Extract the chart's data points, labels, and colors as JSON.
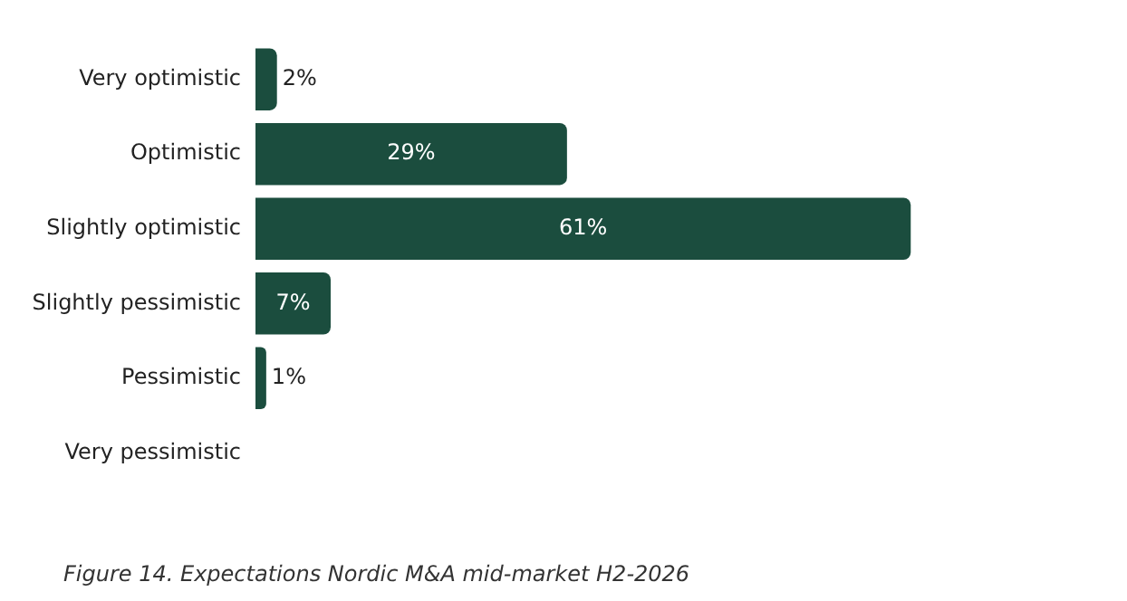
{
  "chart_data": {
    "type": "bar",
    "orientation": "horizontal",
    "categories": [
      "Very optimistic",
      "Optimistic",
      "Slightly optimistic",
      "Slightly pessimistic",
      "Pessimistic",
      "Very pessimistic"
    ],
    "values": [
      2,
      29,
      61,
      7,
      1,
      null
    ],
    "value_labels": [
      "2%",
      "29%",
      "61%",
      "7%",
      "1%",
      null
    ],
    "color": "#1b4d3e",
    "grid": false,
    "legend": false,
    "tick_labels": "y",
    "annotations": [
      "Figure 14. Expectations Nordic M&A mid-market H2-2026"
    ]
  }
}
